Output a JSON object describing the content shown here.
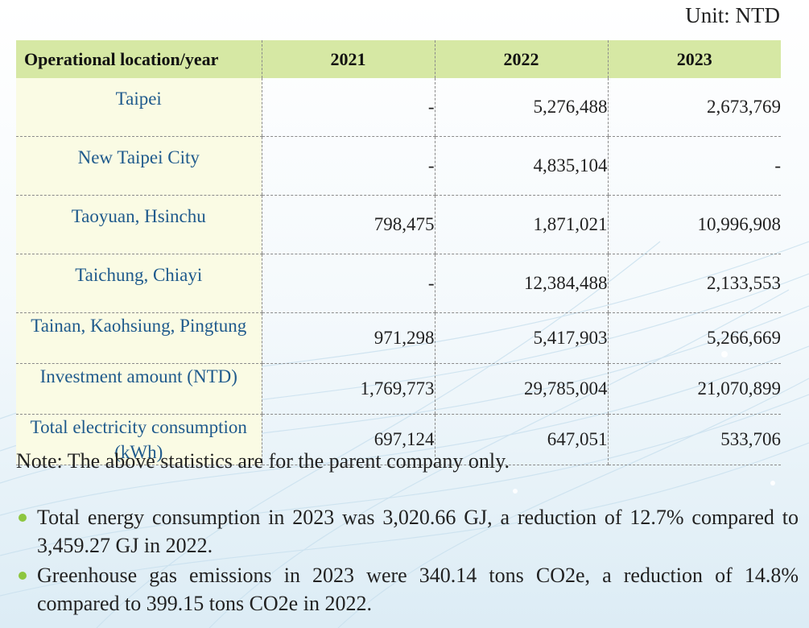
{
  "unit_label": "Unit: NTD",
  "table": {
    "headers": [
      "Operational location/year",
      "2021",
      "2022",
      "2023"
    ],
    "rows": [
      {
        "location": "Taipei",
        "y2021": "-",
        "y2022": "5,276,488",
        "y2023": "2,673,769"
      },
      {
        "location": "New Taipei City",
        "y2021": "-",
        "y2022": "4,835,104",
        "y2023": "-"
      },
      {
        "location": "Taoyuan, Hsinchu",
        "y2021": "798,475",
        "y2022": "1,871,021",
        "y2023": "10,996,908"
      },
      {
        "location": "Taichung, Chiayi",
        "y2021": "-",
        "y2022": "12,384,488",
        "y2023": "2,133,553"
      },
      {
        "location": "Tainan, Kaohsiung, Pingtung",
        "y2021": "971,298",
        "y2022": "5,417,903",
        "y2023": "5,266,669"
      },
      {
        "location": "Investment amount (NTD)",
        "y2021": "1,769,773",
        "y2022": "29,785,004",
        "y2023": "21,070,899"
      },
      {
        "location": "Total electricity consumption (kWh)",
        "y2021": "697,124",
        "y2022": "647,051",
        "y2023": "533,706"
      }
    ]
  },
  "note": "Note: The above statistics are for the parent company only.",
  "bullets": [
    "Total energy consumption in 2023 was 3,020.66 GJ, a reduction of 12.7% compared to 3,459.27 GJ in 2022.",
    "Greenhouse gas emissions in 2023 were 340.14 tons CO2e, a reduction of 14.8% compared to 399.15 tons CO2e in 2022."
  ],
  "colors": {
    "header_bg": "#d6e8a4",
    "location_bg": "#fafbe4",
    "location_text": "#1f5a8c",
    "bullet": "#8dc63f"
  }
}
